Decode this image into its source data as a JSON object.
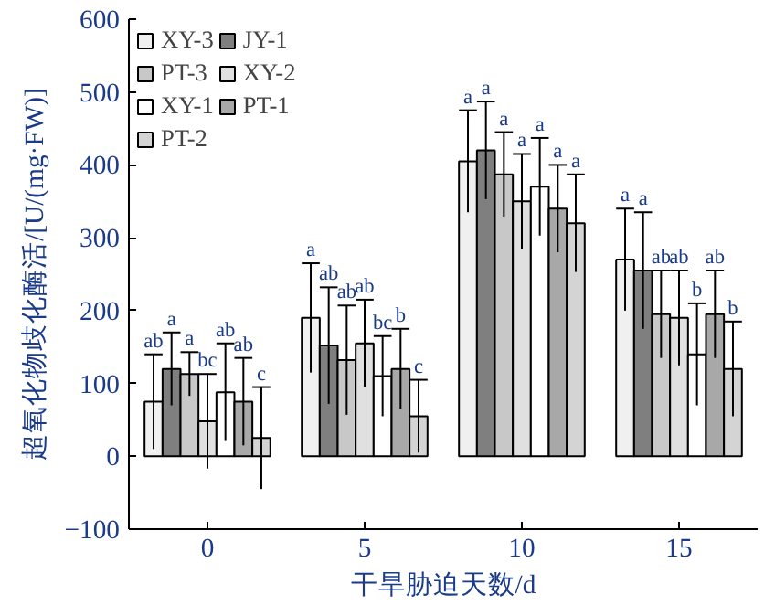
{
  "chart_data": {
    "type": "bar",
    "xlabel": "干旱胁迫天数/d",
    "ylabel": "超氧化物歧化酶活/[U/(mg·FW)]",
    "categories": [
      "0",
      "5",
      "10",
      "15"
    ],
    "ylim": [
      -100,
      600
    ],
    "yticks": [
      -100,
      0,
      100,
      200,
      300,
      400,
      500,
      600
    ],
    "grid": false,
    "legend": "top left",
    "series": [
      {
        "name": "XY-3",
        "color": "#f0f0f0",
        "values": [
          75,
          190,
          405,
          270
        ],
        "errors": [
          65,
          75,
          70,
          70
        ],
        "value_labels": [
          "ab",
          "a",
          "a",
          "a"
        ]
      },
      {
        "name": "JY-1",
        "color": "#7f7f7f",
        "values": [
          120,
          152,
          420,
          255
        ],
        "errors": [
          50,
          80,
          67,
          80
        ],
        "value_labels": [
          "a",
          "ab",
          "a",
          "a"
        ]
      },
      {
        "name": "PT-3",
        "color": "#c8c8c8",
        "values": [
          113,
          132,
          387,
          195
        ],
        "errors": [
          30,
          75,
          58,
          60
        ],
        "value_labels": [
          "a",
          "ab",
          "a",
          "ab"
        ]
      },
      {
        "name": "XY-2",
        "color": "#e0e0e0",
        "values": [
          48,
          155,
          350,
          190
        ],
        "errors": [
          65,
          60,
          65,
          65
        ],
        "value_labels": [
          "bc",
          "ab",
          "a",
          "ab"
        ]
      },
      {
        "name": "XY-1",
        "color": "#ffffff",
        "values": [
          88,
          110,
          370,
          140
        ],
        "errors": [
          67,
          55,
          67,
          70
        ],
        "value_labels": [
          "ab",
          "bc",
          "a",
          "b"
        ]
      },
      {
        "name": "PT-1",
        "color": "#a8a8a8",
        "values": [
          75,
          120,
          340,
          195
        ],
        "errors": [
          60,
          55,
          60,
          60
        ],
        "value_labels": [
          "ab",
          "b",
          "a",
          "ab"
        ]
      },
      {
        "name": "PT-2",
        "color": "#d4d4d4",
        "values": [
          25,
          55,
          320,
          120
        ],
        "errors": [
          70,
          50,
          67,
          65
        ],
        "value_labels": [
          "c",
          "c",
          "a",
          "b"
        ]
      }
    ]
  }
}
